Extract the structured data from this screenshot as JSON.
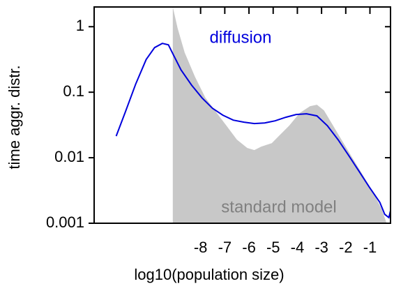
{
  "chart_data": {
    "type": "line",
    "xlabel": "log10(population size)",
    "ylabel": "time aggr. distr.",
    "log_y": true,
    "xlim": [
      -12.4,
      -0.15
    ],
    "ylim": [
      0.001,
      2
    ],
    "xticks": [
      -8,
      -7,
      -6,
      -5,
      -4,
      -3,
      -2,
      -1
    ],
    "yticks": [
      1,
      0.1,
      0.01,
      0.001
    ],
    "series": [
      {
        "name": "standard model",
        "kind": "area",
        "color": "#c8c8c8",
        "label_color": "#808080",
        "x": [
          -9.15,
          -8.95,
          -8.66,
          -8.23,
          -7.8,
          -7.37,
          -6.93,
          -6.5,
          -6.07,
          -5.78,
          -5.49,
          -5.06,
          -4.77,
          -4.34,
          -3.91,
          -3.48,
          -3.19,
          -2.9,
          -2.61,
          -2.18,
          -1.75,
          -1.31,
          -0.88,
          -0.51,
          -0.31
        ],
        "values": [
          2,
          0.95,
          0.404,
          0.171,
          0.082,
          0.0504,
          0.0308,
          0.0189,
          0.0141,
          0.0131,
          0.0148,
          0.0167,
          0.0214,
          0.0308,
          0.048,
          0.0612,
          0.0644,
          0.0528,
          0.0349,
          0.0189,
          0.0103,
          0.00556,
          0.00301,
          0.00163,
          0.001
        ]
      },
      {
        "name": "diffusion",
        "kind": "line",
        "color": "#0000dd",
        "label_color": "#0000dd",
        "x": [
          -11.49,
          -11.11,
          -10.68,
          -10.25,
          -9.9,
          -9.58,
          -9.33,
          -9.1,
          -8.81,
          -8.37,
          -7.94,
          -7.51,
          -7.08,
          -6.65,
          -6.21,
          -5.78,
          -5.35,
          -4.92,
          -4.48,
          -4.05,
          -3.62,
          -3.19,
          -2.76,
          -2.32,
          -1.89,
          -1.46,
          -1.03,
          -0.59,
          -0.39,
          -0.22,
          -0.1
        ],
        "values": [
          0.0214,
          0.05,
          0.134,
          0.316,
          0.48,
          0.556,
          0.528,
          0.357,
          0.219,
          0.128,
          0.082,
          0.0569,
          0.0446,
          0.0375,
          0.0349,
          0.0332,
          0.034,
          0.0366,
          0.0414,
          0.0457,
          0.0468,
          0.0435,
          0.0308,
          0.0189,
          0.011,
          0.00628,
          0.00357,
          0.00208,
          0.00137,
          0.00122,
          0.00184
        ]
      }
    ]
  }
}
